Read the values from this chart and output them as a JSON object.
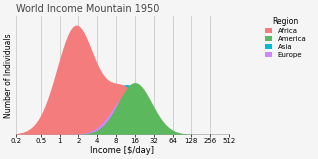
{
  "title": "World Income Mountain 1950",
  "xlabel": "Income [$/day]",
  "ylabel": "Number of Individuals",
  "background_color": "#f5f5f5",
  "plot_bg_color": "#f5f5f5",
  "grid_color": "#cccccc",
  "regions": [
    "Africa",
    "America",
    "Asia",
    "Europe"
  ],
  "colors": {
    "Africa": "#f47c7c",
    "America": "#5cb85c",
    "Asia": "#00bcd4",
    "Europe": "#cc88ff"
  },
  "x_ticks": [
    0.2,
    0.5,
    1,
    2,
    4,
    8,
    16,
    32,
    64,
    128,
    256,
    512
  ],
  "x_tick_labels": [
    "0.2",
    "0.5",
    "1",
    "2",
    "4",
    "8",
    "16",
    "32",
    "64",
    "128",
    "256",
    "512"
  ]
}
